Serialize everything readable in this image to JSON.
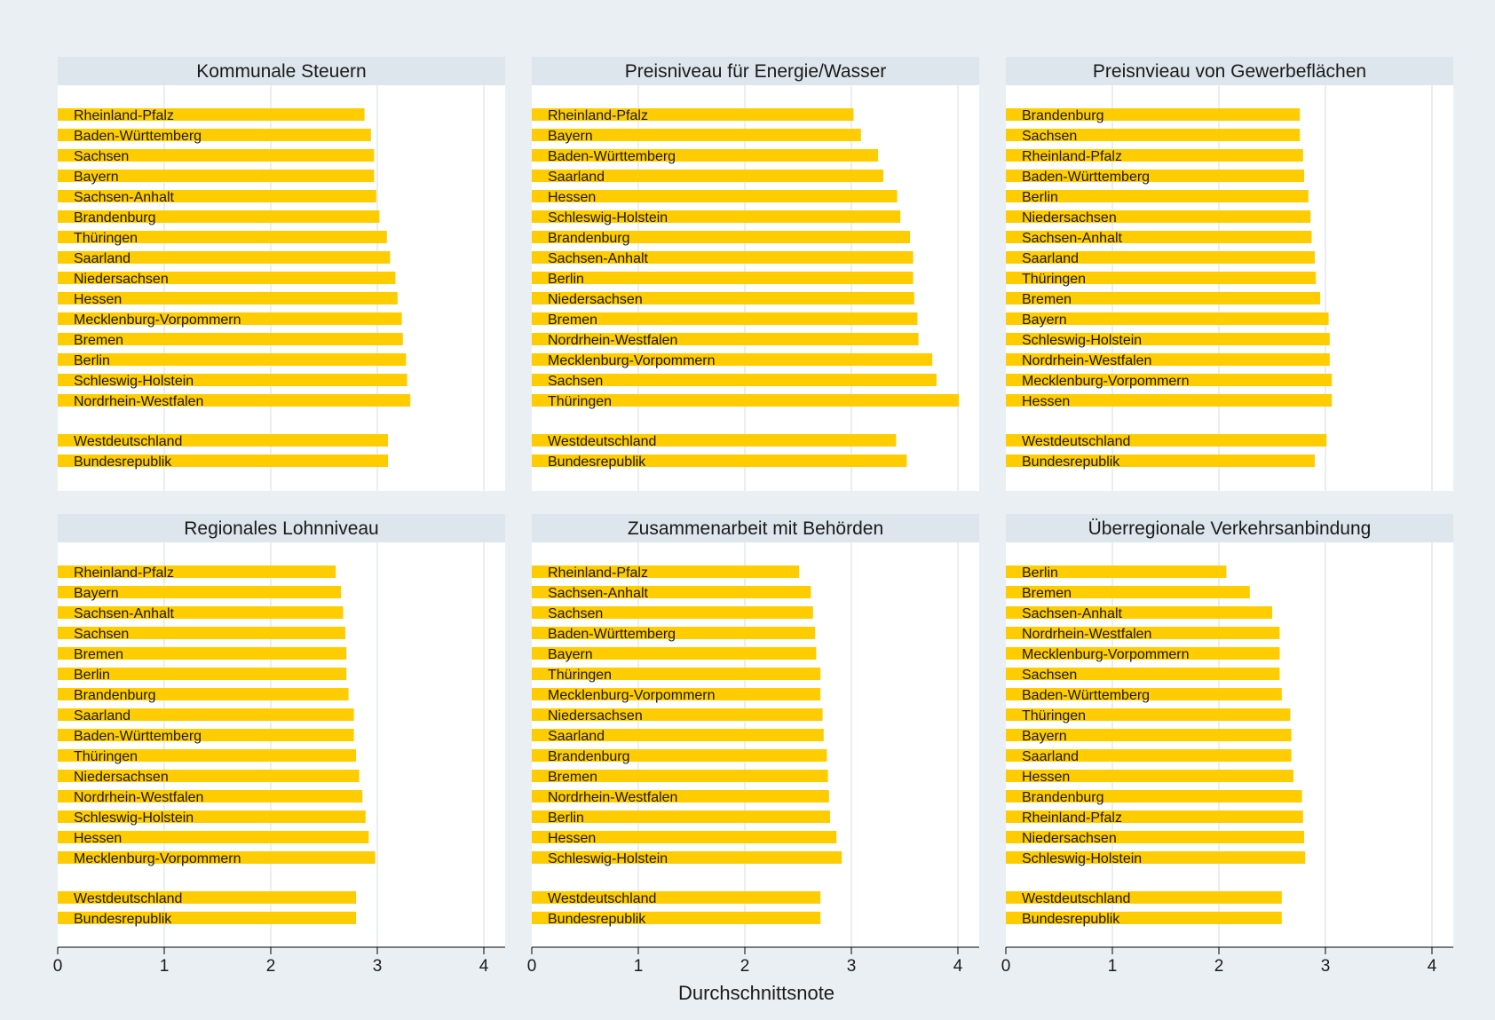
{
  "chart_data": {
    "type": "bar",
    "orientation": "horizontal",
    "xlabel": "Durchschnittsnote",
    "xlim": [
      0,
      4.2
    ],
    "xticks": [
      0,
      1,
      2,
      3,
      4
    ],
    "grid": true,
    "colors": {
      "bar": "#ffcc00",
      "panel_bg": "#ffffff",
      "header_bg": "#dde6ec",
      "page_bg": "#e9eff3",
      "grid": "#e3e8ec",
      "text": "#1a1a1a"
    },
    "panels": [
      {
        "title": "Kommunale Steuern",
        "categories": [
          "Rheinland-Pfalz",
          "Baden-Württemberg",
          "Sachsen",
          "Bayern",
          "Sachsen-Anhalt",
          "Brandenburg",
          "Thüringen",
          "Saarland",
          "Niedersachsen",
          "Hessen",
          "Mecklenburg-Vorpommern",
          "Bremen",
          "Berlin",
          "Schleswig-Holstein",
          "Nordrhein-Westfalen"
        ],
        "values": [
          2.88,
          2.94,
          2.97,
          2.97,
          2.99,
          3.02,
          3.09,
          3.12,
          3.17,
          3.19,
          3.23,
          3.24,
          3.27,
          3.28,
          3.31
        ],
        "summary_categories": [
          "Westdeutschland",
          "Bundesrepublik"
        ],
        "summary_values": [
          3.1,
          3.1
        ]
      },
      {
        "title": "Preisniveau für Energie/Wasser",
        "categories": [
          "Rheinland-Pfalz",
          "Bayern",
          "Baden-Württemberg",
          "Saarland",
          "Hessen",
          "Schleswig-Holstein",
          "Brandenburg",
          "Sachsen-Anhalt",
          "Berlin",
          "Niedersachsen",
          "Bremen",
          "Nordrhein-Westfalen",
          "Mecklenburg-Vorpommern",
          "Sachsen",
          "Thüringen"
        ],
        "values": [
          3.02,
          3.09,
          3.25,
          3.3,
          3.43,
          3.46,
          3.55,
          3.58,
          3.58,
          3.59,
          3.62,
          3.63,
          3.76,
          3.8,
          4.01
        ],
        "summary_categories": [
          "Westdeutschland",
          "Bundesrepublik"
        ],
        "summary_values": [
          3.42,
          3.52
        ]
      },
      {
        "title": "Preisnvieau von Gewerbeflächen",
        "categories": [
          "Brandenburg",
          "Sachsen",
          "Rheinland-Pfalz",
          "Baden-Württemberg",
          "Berlin",
          "Niedersachsen",
          "Sachsen-Anhalt",
          "Saarland",
          "Thüringen",
          "Bremen",
          "Bayern",
          "Schleswig-Holstein",
          "Nordrhein-Westfalen",
          "Mecklenburg-Vorpommern",
          "Hessen"
        ],
        "values": [
          2.76,
          2.76,
          2.79,
          2.8,
          2.84,
          2.86,
          2.87,
          2.9,
          2.91,
          2.95,
          3.03,
          3.04,
          3.04,
          3.06,
          3.06
        ],
        "summary_categories": [
          "Westdeutschland",
          "Bundesrepublik"
        ],
        "summary_values": [
          3.01,
          2.9
        ]
      },
      {
        "title": "Regionales Lohnniveau",
        "categories": [
          "Rheinland-Pfalz",
          "Bayern",
          "Sachsen-Anhalt",
          "Sachsen",
          "Bremen",
          "Berlin",
          "Brandenburg",
          "Saarland",
          "Baden-Württemberg",
          "Thüringen",
          "Niedersachsen",
          "Nordrhein-Westfalen",
          "Schleswig-Holstein",
          "Hessen",
          "Mecklenburg-Vorpommern"
        ],
        "values": [
          2.61,
          2.66,
          2.68,
          2.7,
          2.71,
          2.71,
          2.73,
          2.78,
          2.78,
          2.8,
          2.83,
          2.86,
          2.89,
          2.92,
          2.98
        ],
        "summary_categories": [
          "Westdeutschland",
          "Bundesrepublik"
        ],
        "summary_values": [
          2.8,
          2.8
        ]
      },
      {
        "title": "Zusammenarbeit mit Behörden",
        "categories": [
          "Rheinland-Pfalz",
          "Sachsen-Anhalt",
          "Sachsen",
          "Baden-Württemberg",
          "Bayern",
          "Thüringen",
          "Mecklenburg-Vorpommern",
          "Niedersachsen",
          "Saarland",
          "Brandenburg",
          "Bremen",
          "Nordrhein-Westfalen",
          "Berlin",
          "Hessen",
          "Schleswig-Holstein"
        ],
        "values": [
          2.51,
          2.62,
          2.64,
          2.66,
          2.67,
          2.71,
          2.71,
          2.73,
          2.74,
          2.77,
          2.78,
          2.79,
          2.8,
          2.86,
          2.91
        ],
        "summary_categories": [
          "Westdeutschland",
          "Bundesrepublik"
        ],
        "summary_values": [
          2.71,
          2.71
        ]
      },
      {
        "title": "Überregionale Verkehrsanbindung",
        "categories": [
          "Berlin",
          "Bremen",
          "Sachsen-Anhalt",
          "Nordrhein-Westfalen",
          "Mecklenburg-Vorpommern",
          "Sachsen",
          "Baden-Württemberg",
          "Thüringen",
          "Bayern",
          "Saarland",
          "Hessen",
          "Brandenburg",
          "Rheinland-Pfalz",
          "Niedersachsen",
          "Schleswig-Holstein"
        ],
        "values": [
          2.07,
          2.29,
          2.5,
          2.57,
          2.57,
          2.57,
          2.59,
          2.67,
          2.68,
          2.68,
          2.7,
          2.78,
          2.79,
          2.8,
          2.81
        ],
        "summary_categories": [
          "Westdeutschland",
          "Bundesrepublik"
        ],
        "summary_values": [
          2.59,
          2.59
        ]
      }
    ]
  }
}
